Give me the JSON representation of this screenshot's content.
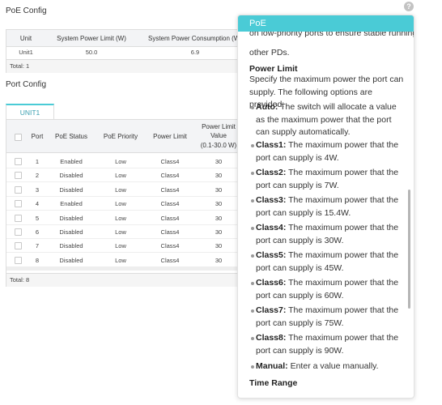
{
  "help_icon": "?",
  "poe_config": {
    "title": "PoE Config",
    "columns": [
      "Unit",
      "System Power Limit (W)",
      "System Power Consumption (W)"
    ],
    "rows": [
      [
        "Unit1",
        "50.0",
        "6.9"
      ]
    ],
    "footer": "Total: 1"
  },
  "port_config": {
    "title": "Port Config",
    "tab": "UNIT1",
    "columns": [
      "Port",
      "PoE Status",
      "PoE Priority",
      "Power Limit",
      "Power Limit Value",
      "(0.1-30.0 W)"
    ],
    "rows": [
      [
        "1",
        "Enabled",
        "Low",
        "Class4",
        "30"
      ],
      [
        "2",
        "Disabled",
        "Low",
        "Class4",
        "30"
      ],
      [
        "3",
        "Disabled",
        "Low",
        "Class4",
        "30"
      ],
      [
        "4",
        "Enabled",
        "Low",
        "Class4",
        "30"
      ],
      [
        "5",
        "Disabled",
        "Low",
        "Class4",
        "30"
      ],
      [
        "6",
        "Disabled",
        "Low",
        "Class4",
        "30"
      ],
      [
        "7",
        "Disabled",
        "Low",
        "Class4",
        "30"
      ],
      [
        "8",
        "Disabled",
        "Low",
        "Class4",
        "30"
      ]
    ],
    "footer": "Total: 8"
  },
  "panel": {
    "title": "PoE",
    "intro_cut": "on low-priority ports to ensure stable running of",
    "intro_end": "other PDs.",
    "section": "Power Limit",
    "description": "Specify the maximum power the port can supply. The following options are provided:",
    "options": [
      {
        "term": "Auto:",
        "text": "The switch will allocate a value as the maximum power that the port can supply automatically."
      },
      {
        "term": "Class1:",
        "text": "The maximum power that the port can supply is 4W."
      },
      {
        "term": "Class2:",
        "text": "The maximum power that the port can supply is 7W."
      },
      {
        "term": "Class3:",
        "text": "The maximum power that the port can supply is 15.4W."
      },
      {
        "term": "Class4:",
        "text": "The maximum power that the port can supply is 30W."
      },
      {
        "term": "Class5:",
        "text": "The maximum power that the port can supply is 45W."
      },
      {
        "term": "Class6:",
        "text": "The maximum power that the port can supply is 60W."
      },
      {
        "term": "Class7:",
        "text": "The maximum power that the port can supply is 75W."
      },
      {
        "term": "Class8:",
        "text": "The maximum power that the port can supply is 90W."
      },
      {
        "term": "Manual:",
        "text": "Enter a value manually."
      }
    ],
    "next_section": "Time Range"
  }
}
